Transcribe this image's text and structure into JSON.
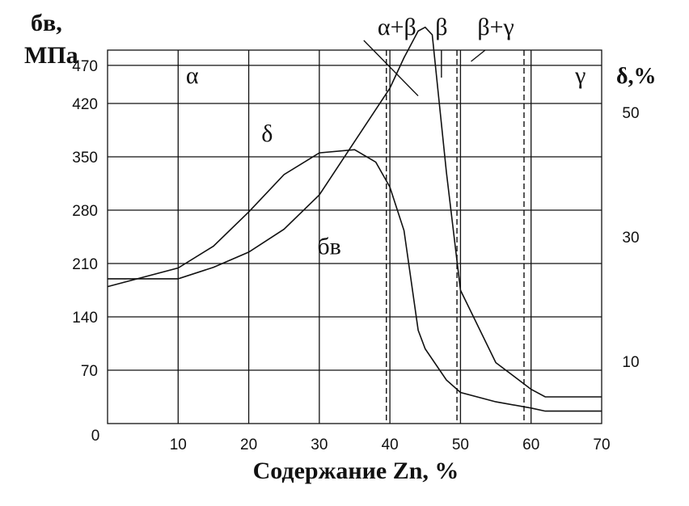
{
  "chart_data": {
    "type": "line",
    "xlabel": "Содержание Zn, %",
    "ylabel_left_line1": "бв,",
    "ylabel_left_line2": "МПа",
    "ylabel_right": "δ,%",
    "x_ticks": [
      "10",
      "20",
      "30",
      "40",
      "50",
      "60",
      "70"
    ],
    "x_origin_label": "0",
    "xlim": [
      0,
      70
    ],
    "left_ticks": [
      {
        "value": 70,
        "label": "70"
      },
      {
        "value": 140,
        "label": "140"
      },
      {
        "value": 210,
        "label": "210"
      },
      {
        "value": 280,
        "label": "280"
      },
      {
        "value": 350,
        "label": "350"
      },
      {
        "value": 420,
        "label": "420"
      },
      {
        "value": 470,
        "label": "470"
      }
    ],
    "ylim_left": [
      0,
      490
    ],
    "right_ticks": [
      {
        "value": 10,
        "label": "10"
      },
      {
        "value": 30,
        "label": "30"
      },
      {
        "value": 50,
        "label": "50"
      }
    ],
    "ylim_right": [
      0,
      60
    ],
    "grid": true,
    "phase_labels": [
      {
        "text": "α",
        "x": 12
      },
      {
        "text": "α+β",
        "x": 41
      },
      {
        "text": "β",
        "x": 47.3
      },
      {
        "text": "β+γ",
        "x": 55
      },
      {
        "text": "γ",
        "x": 67
      }
    ],
    "phase_boundaries": [
      39.5,
      49.5,
      59
    ],
    "series": [
      {
        "name": "бв",
        "axis": "left",
        "x": [
          0,
          10,
          15,
          20,
          25,
          30,
          35,
          40,
          42,
          44,
          45,
          46,
          48,
          50,
          55,
          60,
          62,
          70
        ],
        "y": [
          190,
          190,
          205,
          225,
          255,
          300,
          370,
          440,
          480,
          515,
          520,
          510,
          330,
          175,
          80,
          45,
          35,
          35
        ]
      },
      {
        "name": "δ",
        "axis": "right",
        "x": [
          0,
          10,
          15,
          20,
          25,
          30,
          35,
          38,
          40,
          42,
          44,
          45,
          48,
          50,
          55,
          60,
          62,
          70
        ],
        "y": [
          22,
          25,
          28.5,
          34,
          40,
          43.5,
          44,
          42,
          38,
          31,
          15,
          12,
          7,
          5,
          3.5,
          2.5,
          2,
          2
        ]
      }
    ],
    "curve_labels": [
      {
        "text": "δ",
        "series": "δ"
      },
      {
        "text": "бв",
        "series": "бв"
      }
    ]
  }
}
